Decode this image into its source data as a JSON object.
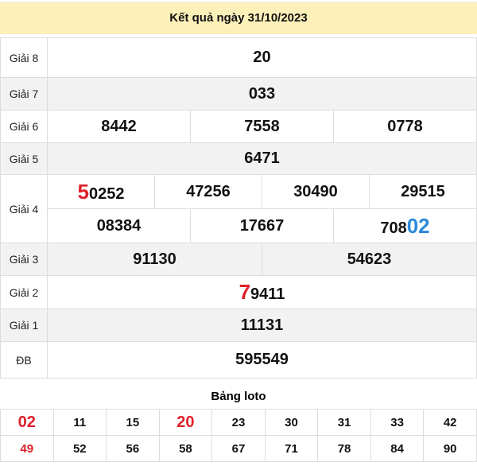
{
  "header": {
    "title": "Kết quả ngày 31/10/2023"
  },
  "prizes": {
    "g8": {
      "label": "Giải 8",
      "value": "20"
    },
    "g7": {
      "label": "Giải 7",
      "value": "033"
    },
    "g6": {
      "label": "Giải 6",
      "values": [
        "8442",
        "7558",
        "0778"
      ]
    },
    "g5": {
      "label": "Giải 5",
      "value": "6471"
    },
    "g4": {
      "label": "Giải 4",
      "row1": [
        {
          "hl": "5",
          "rest": "0252"
        },
        {
          "hl": "",
          "rest": "47256"
        },
        {
          "hl": "",
          "rest": "30490"
        },
        {
          "hl": "",
          "rest": "29515"
        }
      ],
      "row2": [
        {
          "pre": "",
          "hl": "08384"
        },
        {
          "pre": "",
          "hl": "17667"
        },
        {
          "pre": "708",
          "hl": "02"
        }
      ]
    },
    "g3": {
      "label": "Giải 3",
      "values": [
        "91130",
        "54623"
      ]
    },
    "g2": {
      "label": "Giải 2",
      "hl": "7",
      "rest": "9411"
    },
    "g1": {
      "label": "Giải 1",
      "value": "11131"
    },
    "db": {
      "label": "ĐB",
      "value": "595549"
    }
  },
  "loto": {
    "title": "Bảng loto",
    "row1": [
      "02",
      "11",
      "15",
      "20",
      "23",
      "30",
      "31",
      "33",
      "42"
    ],
    "row2": [
      "49",
      "52",
      "56",
      "58",
      "67",
      "71",
      "78",
      "84",
      "90"
    ],
    "highlighted": [
      "02",
      "20",
      "49"
    ],
    "highlight_color": "#e0202a"
  },
  "colors": {
    "header_bg": "#fdf0b9",
    "blue": "#2a8ade",
    "red": "#e0202a"
  }
}
